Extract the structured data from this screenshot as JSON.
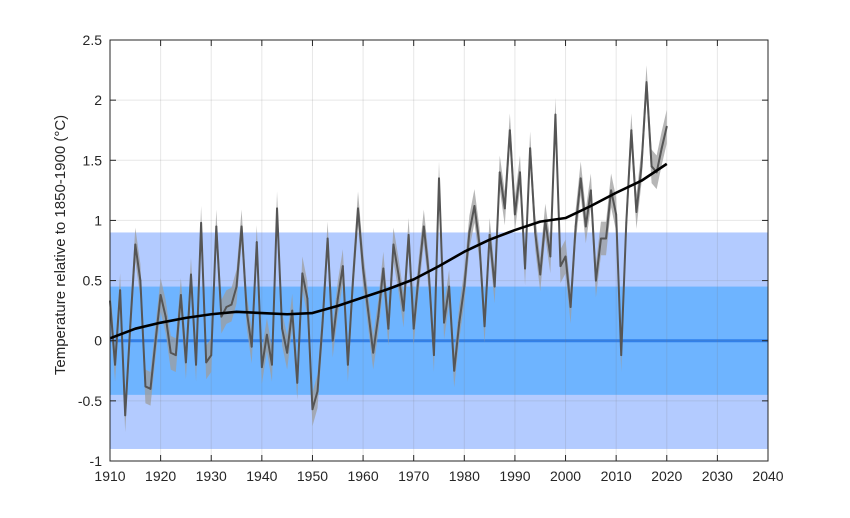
{
  "chart_data": {
    "type": "line",
    "title": "",
    "xlabel": "",
    "ylabel": "Temperature relative to 1850-1900 (°C)",
    "xlim": [
      1910,
      2040
    ],
    "ylim": [
      -1,
      2.5
    ],
    "grid": true,
    "x_ticks": [
      "1910",
      "1920",
      "1930",
      "1940",
      "1950",
      "1960",
      "1970",
      "1980",
      "1990",
      "2000",
      "2010",
      "2020",
      "2030",
      "2040"
    ],
    "y_ticks": [
      "-1",
      "-0.5",
      "0",
      "0.5",
      "1",
      "1.5",
      "2",
      "2.5"
    ],
    "bands": [
      {
        "name": "outer band",
        "y0": -0.9,
        "y1": 0.9,
        "color": "#b3cbff"
      },
      {
        "name": "inner band",
        "y0": -0.45,
        "y1": 0.45,
        "color": "#6eb4ff"
      }
    ],
    "baseline": {
      "y": 0,
      "color": "#2f80ed"
    },
    "series": [
      {
        "type": "annual",
        "color": "#555555",
        "uncertainty": 0.14,
        "x": [
          1910,
          1911,
          1912,
          1913,
          1914,
          1915,
          1916,
          1917,
          1918,
          1919,
          1920,
          1921,
          1922,
          1923,
          1924,
          1925,
          1926,
          1927,
          1928,
          1929,
          1930,
          1931,
          1932,
          1933,
          1934,
          1935,
          1936,
          1937,
          1938,
          1939,
          1940,
          1941,
          1942,
          1943,
          1944,
          1945,
          1946,
          1947,
          1948,
          1949,
          1950,
          1951,
          1952,
          1953,
          1954,
          1955,
          1956,
          1957,
          1958,
          1959,
          1960,
          1961,
          1962,
          1963,
          1964,
          1965,
          1966,
          1967,
          1968,
          1969,
          1970,
          1971,
          1972,
          1973,
          1974,
          1975,
          1976,
          1977,
          1978,
          1979,
          1980,
          1981,
          1982,
          1983,
          1984,
          1985,
          1986,
          1987,
          1988,
          1989,
          1990,
          1991,
          1992,
          1993,
          1994,
          1995,
          1996,
          1997,
          1998,
          1999,
          2000,
          2001,
          2002,
          2003,
          2004,
          2005,
          2006,
          2007,
          2008,
          2009,
          2010,
          2011,
          2012,
          2013,
          2014,
          2015,
          2016,
          2017,
          2018,
          2019,
          2020
        ],
        "y": [
          0.33,
          -0.2,
          0.42,
          -0.62,
          0.12,
          0.8,
          0.5,
          -0.38,
          -0.4,
          0.0,
          0.38,
          0.2,
          -0.1,
          -0.12,
          0.38,
          -0.18,
          0.55,
          -0.2,
          0.98,
          -0.18,
          -0.12,
          0.95,
          0.2,
          0.28,
          0.3,
          0.45,
          0.95,
          0.25,
          -0.05,
          0.82,
          -0.22,
          0.05,
          -0.2,
          1.1,
          0.1,
          -0.1,
          0.25,
          -0.35,
          0.56,
          0.35,
          -0.57,
          -0.42,
          0.15,
          0.85,
          0.0,
          0.35,
          0.62,
          -0.2,
          0.5,
          1.1,
          0.6,
          0.25,
          -0.1,
          0.2,
          0.6,
          0.1,
          0.8,
          0.55,
          0.25,
          0.88,
          0.1,
          0.55,
          0.95,
          0.55,
          -0.12,
          1.35,
          0.15,
          0.45,
          -0.25,
          0.15,
          0.45,
          0.9,
          1.12,
          0.8,
          0.12,
          0.88,
          0.45,
          1.4,
          1.1,
          1.75,
          1.05,
          1.4,
          0.6,
          1.6,
          0.9,
          0.55,
          1.0,
          0.7,
          1.88,
          0.62,
          0.7,
          0.28,
          0.95,
          1.35,
          0.95,
          1.25,
          0.5,
          0.85,
          0.85,
          1.25,
          1.05,
          -0.12,
          0.98,
          1.75,
          1.07,
          1.45,
          2.15,
          1.45,
          1.4,
          1.6,
          1.78
        ]
      },
      {
        "type": "smoothed",
        "color": "#000000",
        "x": [
          1910,
          1915,
          1920,
          1925,
          1930,
          1935,
          1940,
          1945,
          1950,
          1955,
          1960,
          1965,
          1970,
          1975,
          1980,
          1985,
          1990,
          1995,
          2000,
          2005,
          2010,
          2015,
          2020
        ],
        "y": [
          0.02,
          0.1,
          0.15,
          0.19,
          0.22,
          0.24,
          0.23,
          0.22,
          0.23,
          0.29,
          0.36,
          0.43,
          0.51,
          0.62,
          0.74,
          0.84,
          0.92,
          0.99,
          1.02,
          1.12,
          1.23,
          1.33,
          1.47
        ]
      }
    ]
  }
}
